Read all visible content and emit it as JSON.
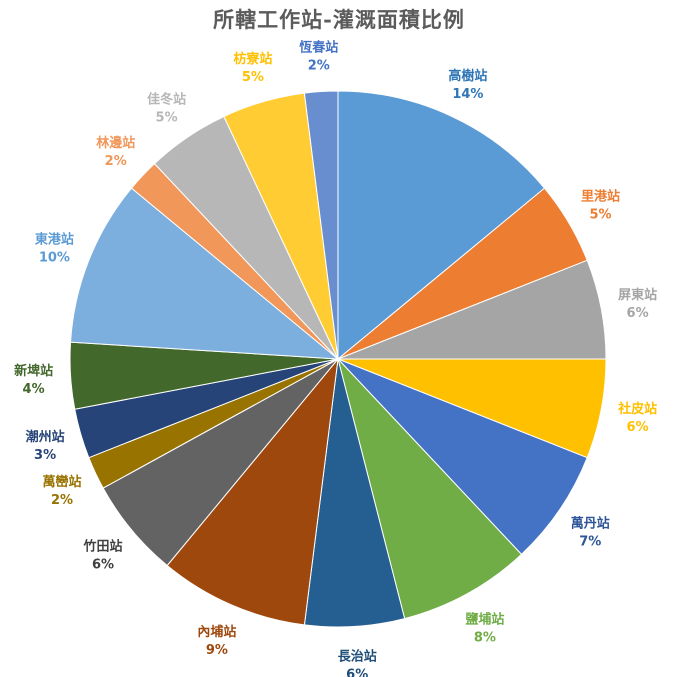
{
  "chart_data": {
    "type": "pie",
    "title": "所轄工作站-灌溉面積比例",
    "legend": "none",
    "slices": [
      {
        "label": "高樹站",
        "value": 14,
        "display": "14%",
        "color": "#5b9bd5",
        "label_color": "#2e75b6"
      },
      {
        "label": "里港站",
        "value": 5,
        "display": "5%",
        "color": "#ed7d31",
        "label_color": "#ed7d31"
      },
      {
        "label": "屏東站",
        "value": 6,
        "display": "6%",
        "color": "#a5a5a5",
        "label_color": "#a5a5a5"
      },
      {
        "label": "社皮站",
        "value": 6,
        "display": "6%",
        "color": "#ffc000",
        "label_color": "#ffc000"
      },
      {
        "label": "萬丹站",
        "value": 7,
        "display": "7%",
        "color": "#4472c4",
        "label_color": "#2f5597"
      },
      {
        "label": "鹽埔站",
        "value": 8,
        "display": "8%",
        "color": "#70ad47",
        "label_color": "#70ad47"
      },
      {
        "label": "長治站",
        "value": 6,
        "display": "6%",
        "color": "#255e91",
        "label_color": "#1f4e79"
      },
      {
        "label": "內埔站",
        "value": 9,
        "display": "9%",
        "color": "#9e480e",
        "label_color": "#9e480e"
      },
      {
        "label": "竹田站",
        "value": 6,
        "display": "6%",
        "color": "#636363",
        "label_color": "#404040"
      },
      {
        "label": "萬巒站",
        "value": 2,
        "display": "2%",
        "color": "#997300",
        "label_color": "#997300"
      },
      {
        "label": "潮州站",
        "value": 3,
        "display": "3%",
        "color": "#264478",
        "label_color": "#264478"
      },
      {
        "label": "新埤站",
        "value": 4,
        "display": "4%",
        "color": "#43682b",
        "label_color": "#43682b"
      },
      {
        "label": "東港站",
        "value": 10,
        "display": "10%",
        "color": "#7cafdd",
        "label_color": "#5b9bd5"
      },
      {
        "label": "林邊站",
        "value": 2,
        "display": "2%",
        "color": "#f1975a",
        "label_color": "#f1975a"
      },
      {
        "label": "佳冬站",
        "value": 5,
        "display": "5%",
        "color": "#b7b7b7",
        "label_color": "#b7b7b7"
      },
      {
        "label": "枋寮站",
        "value": 5,
        "display": "5%",
        "color": "#ffcd33",
        "label_color": "#ffc000"
      },
      {
        "label": "恆春站",
        "value": 2,
        "display": "2%",
        "color": "#698ed0",
        "label_color": "#4472c4"
      }
    ]
  }
}
